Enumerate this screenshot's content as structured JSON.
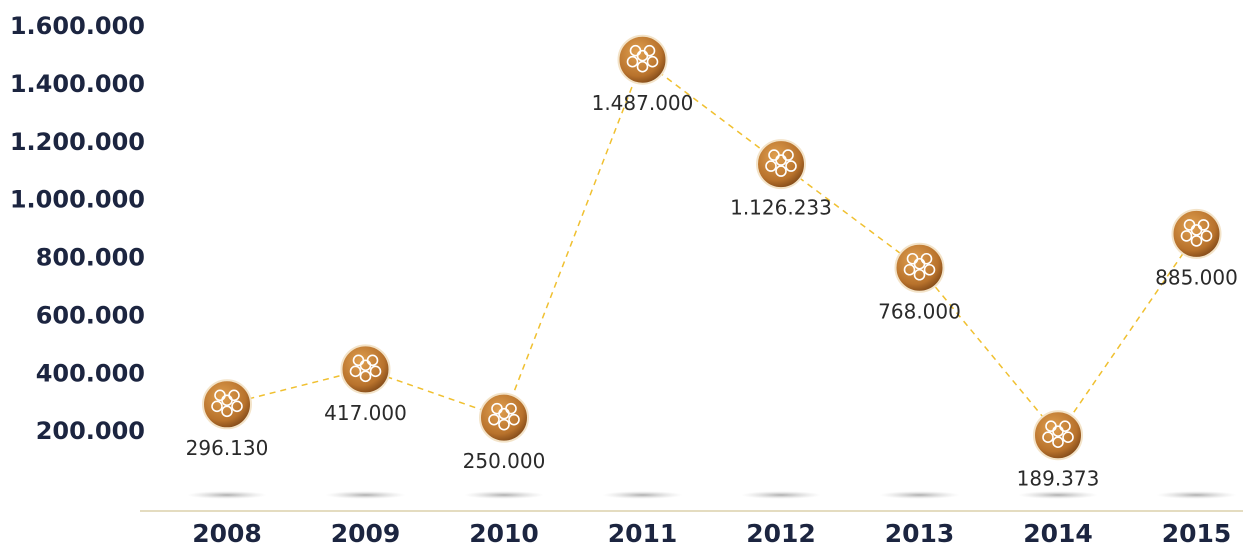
{
  "chart_data": {
    "type": "line",
    "categories": [
      "2008",
      "2009",
      "2010",
      "2011",
      "2012",
      "2013",
      "2014",
      "2015"
    ],
    "values": [
      296130,
      417000,
      250000,
      1487000,
      1126233,
      768000,
      189373,
      885000
    ],
    "value_labels": [
      "296.130",
      "417.000",
      "250.000",
      "1.487.000",
      "1.126.233",
      "768.000",
      "189.373",
      "885.000"
    ],
    "color": "#f0c030",
    "ylim": [
      0,
      1600000
    ],
    "yticks": [
      {
        "value": 200000,
        "label": "200.000"
      },
      {
        "value": 400000,
        "label": "400.000"
      },
      {
        "value": 600000,
        "label": "600.000"
      },
      {
        "value": 800000,
        "label": "800.000"
      },
      {
        "value": 1000000,
        "label": "1.000.000"
      },
      {
        "value": 1200000,
        "label": "1.200.000"
      },
      {
        "value": 1400000,
        "label": "1.400.000"
      },
      {
        "value": 1600000,
        "label": "1.600.000"
      }
    ],
    "grid": true
  }
}
